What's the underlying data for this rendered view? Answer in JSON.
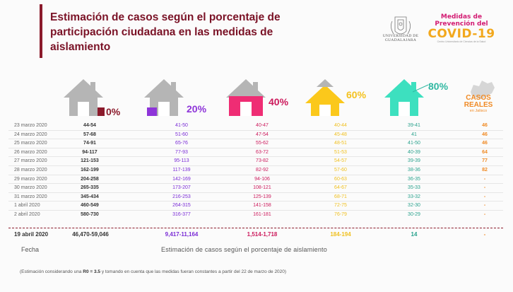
{
  "title": "Estimación de casos según el porcentaje de participación ciudadana en las medidas de aislamiento",
  "logos": {
    "udg_name": "UNIVERSIDAD DE GUADALAJARA",
    "covid_line1": "Medidas de",
    "covid_line2": "Prevención del",
    "covid_big": "COVID-19",
    "covid_small": "Centro Universitario de Ciencias de la Salud"
  },
  "scenarios": [
    {
      "label": "0%",
      "color": "#8b1a2b",
      "house_color": "#b5b5b5",
      "door_color": "#8b1a2b"
    },
    {
      "label": "20%",
      "color": "#8e35d9",
      "house_color": "#b5b5b5",
      "door_color": "#8e35d9"
    },
    {
      "label": "40%",
      "color": "#cc1a5c",
      "house_color": "#ef2d74",
      "door_color": "#ffffff"
    },
    {
      "label": "60%",
      "color": "#f4c21f",
      "house_color": "#fbc81b",
      "door_color": "#ffffff"
    },
    {
      "label": "80%",
      "color": "#2fb7a1",
      "house_color": "#3de0bf",
      "door_color": "#ffffff"
    }
  ],
  "casos_reales": {
    "line1": "CASOS",
    "line2": "REALES",
    "sub": "en Jalisco"
  },
  "rows": [
    {
      "date": "23 marzo 2020",
      "v": [
        "44-54",
        "41-50",
        "40-47",
        "40-44",
        "39-41",
        "46"
      ]
    },
    {
      "date": "24 marzo 2020",
      "v": [
        "57-68",
        "51-60",
        "47-54",
        "45-48",
        "41",
        "46"
      ]
    },
    {
      "date": "25 marzo 2020",
      "v": [
        "74-91",
        "65-76",
        "55-62",
        "48-51",
        "41-50",
        "46"
      ]
    },
    {
      "date": "26 marzo 2020",
      "v": [
        "94-117",
        "77-93",
        "63-72",
        "51-53",
        "40-39",
        "64"
      ]
    },
    {
      "date": "27 marzo 2020",
      "v": [
        "121-153",
        "95-113",
        "73-82",
        "54-57",
        "39-39",
        "77"
      ]
    },
    {
      "date": "28 marzo 2020",
      "v": [
        "162-199",
        "117-139",
        "82-92",
        "57-60",
        "38-36",
        "82"
      ]
    },
    {
      "date": "29 marzo 2020",
      "v": [
        "204-258",
        "142-169",
        "94-106",
        "60-63",
        "36-35",
        "-"
      ]
    },
    {
      "date": "30 marzo 2020",
      "v": [
        "265-335",
        "173-207",
        "108-121",
        "64-67",
        "35-33",
        "-"
      ]
    },
    {
      "date": "31 marzo 2020",
      "v": [
        "345-434",
        "216-253",
        "125-139",
        "68-71",
        "33-32",
        "-"
      ]
    },
    {
      "date": "1 abril 2020",
      "v": [
        "460-549",
        "264-315",
        "141-158",
        "72-75",
        "32-30",
        "-"
      ]
    },
    {
      "date": "2 abril 2020",
      "v": [
        "580-730",
        "316-377",
        "161-181",
        "76-79",
        "30-29",
        "-"
      ]
    }
  ],
  "total": {
    "date": "19 abril 2020",
    "v": [
      "46,470-59,046",
      "9,417-11,164",
      "1,514-1,718",
      "184-194",
      "14",
      "-"
    ]
  },
  "headers": {
    "fecha": "Fecha",
    "estimacion": "Estimación de casos según el porcentaje de aislamiento"
  },
  "footnote": {
    "pre": "(Estimación considerando una ",
    "bold": "R0 = 3.5",
    "post": " y tomando en cuenta que las medidas fueran constantes a partir del 22 de marzo de 2020)"
  }
}
